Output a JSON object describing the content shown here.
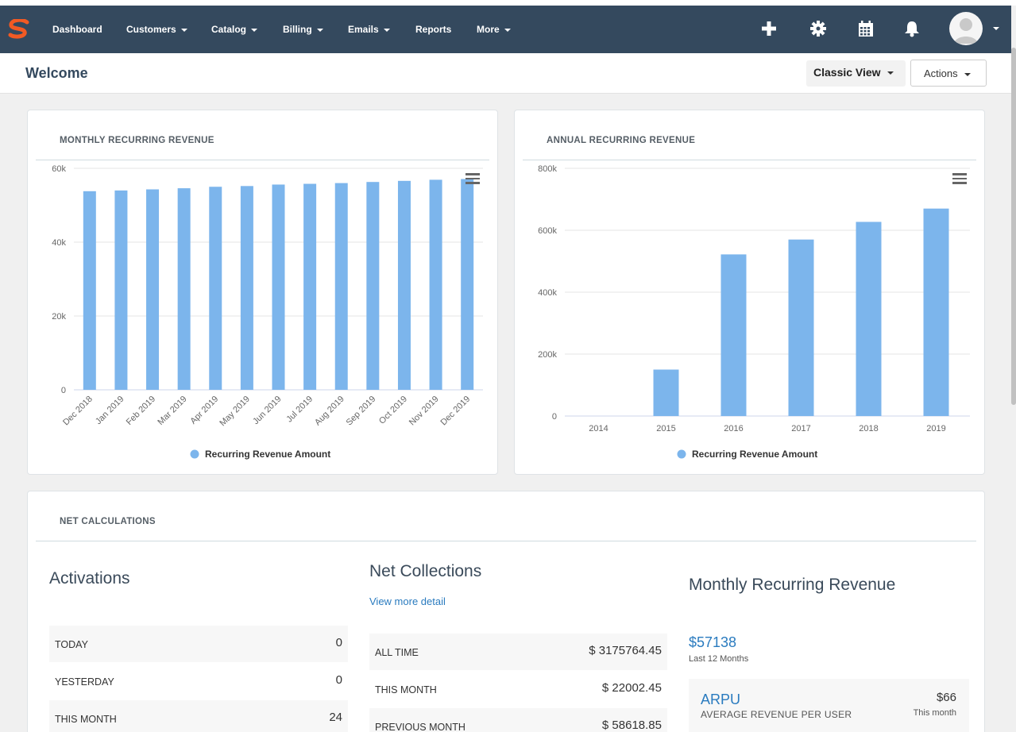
{
  "nav": {
    "items": [
      {
        "label": "Dashboard",
        "dropdown": false
      },
      {
        "label": "Customers",
        "dropdown": true
      },
      {
        "label": "Catalog",
        "dropdown": true
      },
      {
        "label": "Billing",
        "dropdown": true
      },
      {
        "label": "Emails",
        "dropdown": true
      },
      {
        "label": "Reports",
        "dropdown": false
      },
      {
        "label": "More",
        "dropdown": true
      }
    ],
    "icons": [
      "plus-icon",
      "gear-icon",
      "calendar-icon",
      "bell-icon"
    ],
    "bg_color": "#34495e",
    "logo_color": "#f15a24"
  },
  "header": {
    "title": "Welcome",
    "classic_view_label": "Classic View",
    "actions_label": "Actions"
  },
  "charts": {
    "monthly": {
      "title": "MONTHLY RECURRING REVENUE"
    },
    "annual": {
      "title": "ANNUAL RECURRING REVENUE"
    }
  },
  "chart_data": [
    {
      "type": "bar",
      "title": "MONTHLY RECURRING REVENUE",
      "categories": [
        "Dec 2018",
        "Jan 2019",
        "Feb 2019",
        "Mar 2019",
        "Apr 2019",
        "May 2019",
        "Jun 2019",
        "Jul 2019",
        "Aug 2019",
        "Sep 2019",
        "Oct 2019",
        "Nov 2019",
        "Dec 2019"
      ],
      "series": [
        {
          "name": "Recurring Revenue Amount",
          "values": [
            53800,
            54000,
            54300,
            54600,
            55000,
            55200,
            55600,
            55800,
            56000,
            56300,
            56600,
            56900,
            57100
          ]
        }
      ],
      "yticks": [
        "0",
        "20k",
        "40k",
        "60k"
      ],
      "ylim": [
        0,
        60000
      ],
      "xlabel": "",
      "ylabel": "",
      "legend": "bottom-center",
      "color": "#7cb5ec"
    },
    {
      "type": "bar",
      "title": "ANNUAL RECURRING REVENUE",
      "categories": [
        "2014",
        "2015",
        "2016",
        "2017",
        "2018",
        "2019"
      ],
      "series": [
        {
          "name": "Recurring Revenue Amount",
          "values": [
            0,
            150000,
            522000,
            570000,
            627000,
            670000
          ]
        }
      ],
      "yticks": [
        "0",
        "200k",
        "400k",
        "600k",
        "800k"
      ],
      "ylim": [
        0,
        800000
      ],
      "xlabel": "",
      "ylabel": "",
      "legend": "bottom-center",
      "color": "#7cb5ec"
    }
  ],
  "net": {
    "title": "NET CALCULATIONS",
    "activations": {
      "title": "Activations",
      "rows": [
        {
          "label": "TODAY",
          "value": "0"
        },
        {
          "label": "YESTERDAY",
          "value": "0"
        },
        {
          "label": "THIS MONTH",
          "value": "24"
        }
      ]
    },
    "collections": {
      "title": "Net Collections",
      "link": "View more detail",
      "rows": [
        {
          "label": "ALL TIME",
          "value": "$ 3175764.45"
        },
        {
          "label": "THIS MONTH",
          "value": "$ 22002.45"
        },
        {
          "label": "PREVIOUS MONTH",
          "value": "$ 58618.85"
        }
      ]
    },
    "mrr": {
      "title": "Monthly Recurring Revenue",
      "amount": "$57138",
      "amount_sub": "Last 12 Months",
      "arpu_label": "ARPU",
      "arpu_sub": "AVERAGE REVENUE PER USER",
      "arpu_value": "$66",
      "arpu_period": "This month"
    }
  }
}
